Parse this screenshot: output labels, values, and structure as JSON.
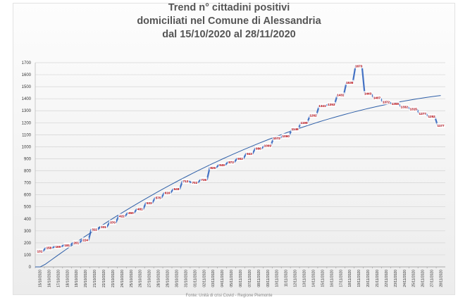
{
  "chart_data": {
    "type": "line",
    "title_lines": [
      "Trend n° cittadini positivi",
      "domiciliati nel Comune di Alessandria",
      "dal 15/10/2020 al 28/11/2020"
    ],
    "xlabel": "",
    "ylabel": "",
    "ylim": [
      0,
      1700
    ],
    "yticks": [
      0,
      100,
      200,
      300,
      400,
      500,
      600,
      700,
      800,
      900,
      1000,
      1100,
      1200,
      1300,
      1400,
      1500,
      1600,
      1700
    ],
    "grid": true,
    "x": [
      "15/10/2020",
      "16/10/2020",
      "17/10/2020",
      "18/10/2020",
      "19/10/2020",
      "20/10/2020",
      "21/10/2020",
      "22/10/2020",
      "23/10/2020",
      "24/10/2020",
      "25/10/2020",
      "26/10/2020",
      "27/10/2020",
      "28/10/2020",
      "29/10/2020",
      "30/10/2020",
      "31/10/2020",
      "01/11/2020",
      "02/11/2020",
      "03/11/2020",
      "04/11/2020",
      "05/11/2020",
      "06/11/2020",
      "07/11/2020",
      "08/11/2020",
      "09/11/2020",
      "10/11/2020",
      "11/11/2020",
      "12/11/2020",
      "13/11/2020",
      "14/11/2020",
      "15/11/2020",
      "16/11/2020",
      "17/11/2020",
      "18/11/2020",
      "19/11/2020",
      "20/11/2020",
      "21/11/2020",
      "22/11/2020",
      "23/11/2020",
      "24/11/2020",
      "25/11/2020",
      "26/11/2020",
      "27/11/2020",
      "28/11/2020"
    ],
    "tick_labels": [
      "15/10/2020",
      "16/10/2020",
      "17/10/2020",
      "18/10/2020",
      "19/10/2020",
      "20/10/2020",
      "21/10/2020",
      "22/10/2020",
      "23/10/2020",
      "24/10/2020",
      "25/10/2020",
      "26/10/2020",
      "27/10/2020",
      "28/10/2020",
      "29/10/2020",
      "30/10/2020",
      "31/10/2020",
      "01/11/2020",
      "02/11/2020",
      "03/11/2020",
      "04/11/2020",
      "05/11/2020",
      "06/11/2020",
      "07/11/2020",
      "08/11/2020",
      "09/11/2020",
      "10/11/2020",
      "11/11/2020",
      "12/11/2020",
      "13/11/2020",
      "14/11/2020",
      "15/11/2020",
      "16/11/2020",
      "17/11/2020",
      "18/11/2020",
      "19/11/2020",
      "20/11/2020",
      "21/11/2020",
      "22/11/2020",
      "23/11/2020",
      "24/11/2020",
      "25/11/2020",
      "26/11/2020",
      "27/11/2020",
      "28/11/2020"
    ],
    "series": [
      {
        "values": [
          131,
          158,
          169,
          181,
          201,
          224,
          311,
          331,
          370,
          422,
          450,
          481,
          533,
          575,
          616,
          648,
          713,
          702,
          726,
          826,
          849,
          872,
          902,
          943,
          986,
          1009,
          1072,
          1090,
          1146,
          1199,
          1262,
          1341,
          1353,
          1431,
          1535,
          1673,
          1443,
          1407,
          1372,
          1359,
          1332,
          1315,
          1277,
          1252,
          1177
        ],
        "labels": [
          "131",
          "158",
          "169",
          "181",
          "201",
          "224",
          "311",
          "331",
          "370",
          "422",
          "450",
          "481",
          "533",
          "575",
          "616",
          "648",
          "713",
          "702",
          "726",
          "826",
          "849",
          "872",
          "902",
          "943",
          "986",
          "1009",
          "1072",
          "1090",
          "1146",
          "1199",
          "1262",
          "1341",
          "1353",
          "1431",
          "1535",
          "1673",
          "1443",
          "1407",
          "1372",
          "1359",
          "1332",
          "1315",
          "1277",
          "1252",
          "1177"
        ],
        "color": "#4472c4"
      }
    ],
    "trendline": {
      "type": "polynomial",
      "color": "#2e5fa8"
    },
    "footer_text": "Fonte: Unità di crisi Covid - Regione Piemonte"
  }
}
